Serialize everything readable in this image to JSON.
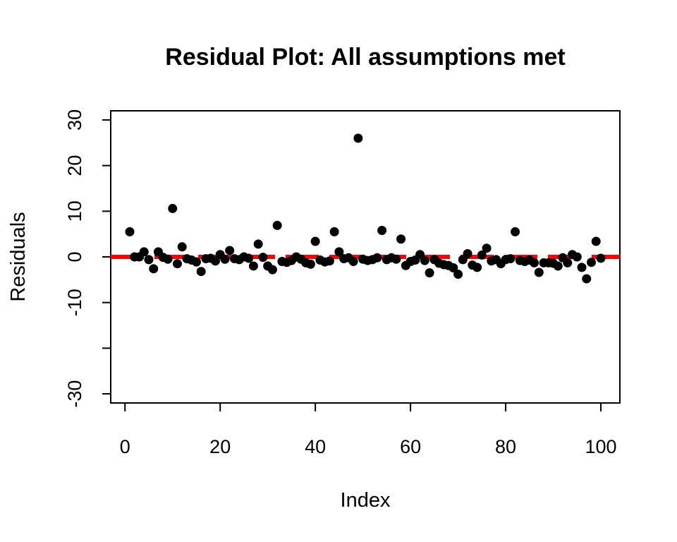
{
  "chart_data": {
    "type": "scatter",
    "title": "Residual Plot: All assumptions met",
    "xlabel": "Index",
    "ylabel": "Residuals",
    "xlim": [
      -3,
      104
    ],
    "ylim": [
      -32,
      32
    ],
    "x_ticks": [
      0,
      20,
      40,
      60,
      80,
      100
    ],
    "x_tick_labels": [
      "0",
      "20",
      "40",
      "60",
      "80",
      "100"
    ],
    "y_ticks": [
      -30,
      -20,
      -10,
      0,
      10,
      20,
      30
    ],
    "y_tick_labels": [
      "-30",
      "",
      "-10",
      "0",
      "10",
      "20",
      "30"
    ],
    "grid": false,
    "legend": "none",
    "colors": {
      "points": "#000000",
      "reference_line": "#ff0000"
    },
    "reference_line": {
      "y": 0,
      "style": "dashed"
    },
    "x": [
      1,
      2,
      3,
      4,
      5,
      6,
      7,
      8,
      9,
      10,
      11,
      12,
      13,
      14,
      15,
      16,
      17,
      18,
      19,
      20,
      21,
      22,
      23,
      24,
      25,
      26,
      27,
      28,
      29,
      30,
      31,
      32,
      33,
      34,
      35,
      36,
      37,
      38,
      39,
      40,
      41,
      42,
      43,
      44,
      45,
      46,
      47,
      48,
      49,
      50,
      51,
      52,
      53,
      54,
      55,
      56,
      57,
      58,
      59,
      60,
      61,
      62,
      63,
      64,
      65,
      66,
      67,
      68,
      69,
      70,
      71,
      72,
      73,
      74,
      75,
      76,
      77,
      78,
      79,
      80,
      81,
      82,
      83,
      84,
      85,
      86,
      87,
      88,
      89,
      90,
      91,
      92,
      93,
      94,
      95,
      96,
      97,
      98,
      99,
      100
    ],
    "y": [
      5.5,
      0,
      0,
      1.1,
      -0.6,
      -2.6,
      1.1,
      -0.1,
      -0.5,
      10.6,
      -1.5,
      2.2,
      -0.4,
      -0.7,
      -1.1,
      -3.2,
      -0.4,
      -0.3,
      -0.9,
      0.5,
      -0.5,
      1.4,
      -0.4,
      -0.6,
      0,
      -0.3,
      -2,
      2.8,
      -0.1,
      -2,
      -2.8,
      6.9,
      -1,
      -1.2,
      -0.8,
      0,
      -0.5,
      -1.3,
      -1.6,
      3.4,
      -0.7,
      -1.1,
      -0.9,
      5.5,
      1.1,
      -0.4,
      -0.2,
      -1,
      26,
      -0.5,
      -0.8,
      -0.6,
      -0.2,
      5.8,
      -0.6,
      -0.2,
      -0.5,
      3.9,
      -1.9,
      -1,
      -0.7,
      0.5,
      -0.8,
      -3.5,
      -0.6,
      -1.4,
      -1.7,
      -1.9,
      -2.4,
      -3.8,
      -0.6,
      0.7,
      -1.8,
      -2.3,
      0.4,
      1.9,
      -0.9,
      -0.6,
      -1.5,
      -0.6,
      -0.4,
      5.5,
      -0.8,
      -1,
      -0.7,
      -1.3,
      -3.4,
      -1.3,
      -1.3,
      -1.4,
      -2,
      -0.2,
      -1.3,
      0.5,
      0,
      -2.3,
      -4.8,
      -1.2,
      3.4,
      -0.3
    ]
  }
}
